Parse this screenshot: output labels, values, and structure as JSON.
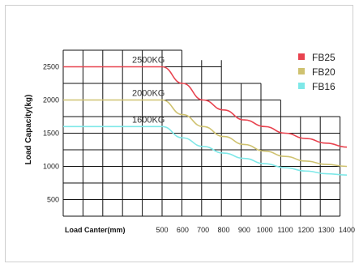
{
  "chart_data": {
    "type": "line",
    "title": "",
    "xlabel": "Load Canter(mm)",
    "ylabel": "Load Capacity(kg)",
    "x_ticks": [
      "500",
      "600",
      "700",
      "800",
      "900",
      "1000",
      "1100",
      "1200",
      "1300",
      "1400"
    ],
    "y_ticks": [
      "500",
      "1000",
      "1500",
      "2000",
      "2500"
    ],
    "xlim": [
      500,
      1400
    ],
    "ylim": [
      250,
      2750
    ],
    "grid": true,
    "legend_position": "top-right",
    "series": [
      {
        "name": "FB25",
        "color": "#e8434f",
        "label": "2500KG",
        "x": [
          500,
          600,
          700,
          800,
          900,
          1000,
          1100,
          1200,
          1300,
          1400
        ],
        "y": [
          2500,
          2250,
          2000,
          1850,
          1700,
          1600,
          1500,
          1420,
          1350,
          1290
        ]
      },
      {
        "name": "FB20",
        "color": "#cfc270",
        "label": "2000KG",
        "x": [
          500,
          600,
          700,
          800,
          900,
          1000,
          1100,
          1200,
          1300,
          1400
        ],
        "y": [
          2000,
          1780,
          1600,
          1450,
          1330,
          1230,
          1150,
          1080,
          1030,
          1000
        ]
      },
      {
        "name": "FB16",
        "color": "#7fe8e8",
        "label": "1600KG",
        "x": [
          500,
          600,
          700,
          800,
          900,
          1000,
          1100,
          1200,
          1300,
          1400
        ],
        "y": [
          1600,
          1430,
          1300,
          1200,
          1120,
          1040,
          980,
          930,
          890,
          870
        ]
      }
    ]
  }
}
